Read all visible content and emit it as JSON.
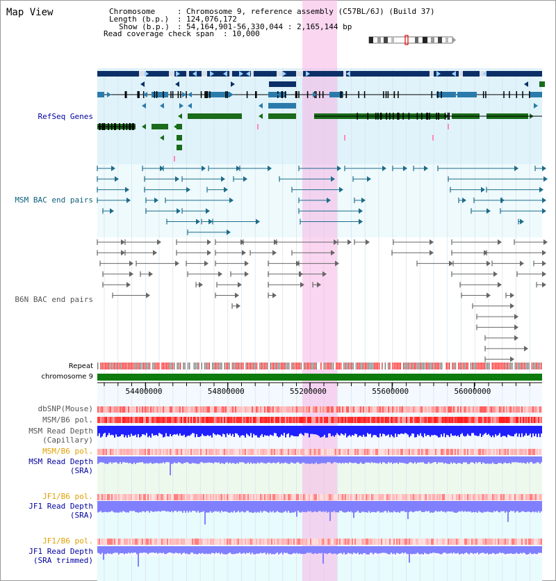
{
  "title": "Map View",
  "info": {
    "chromosome_key": "Chromosome",
    "chromosome_val": "Chromosome 9, reference assembly (C57BL/6J) (Build 37)",
    "length_key": "Length (b.p.)",
    "length_val": "124,076,172",
    "show_key": "Show (b.p.)",
    "show_val": "54,164,901-56,330,044 : 2,165,144 bp",
    "span_key": "Read coverage check span",
    "span_val": "10,000"
  },
  "tracks": {
    "refseq": "RefSeq Genes",
    "msm_bac": "MSM BAC end pairs",
    "b6n_bac": "B6N BAC end pairs",
    "repeat": "Repeat",
    "chrom": "chromosome 9",
    "dbsnp": "dbSNP(Mouse)",
    "msm_b6_pol": "MSM/B6 pol.",
    "msm_depth_cap_1": "MSM Read Depth",
    "msm_depth_cap_2": "(Capillary)",
    "msm_b6_pol2": "MSM/B6 pol.",
    "msm_depth_sra_1": "MSM Read Depth",
    "msm_depth_sra_2": "(SRA)",
    "jf1_b6_pol": "JF1/B6 pol.",
    "jf1_depth_sra_1": "JF1 Read Depth",
    "jf1_depth_sra_2": "(SRA)",
    "jf1_b6_pol2": "JF1/B6 pol.",
    "jf1_depth_trim_1": "JF1 Read Depth",
    "jf1_depth_trim_2": "(SRA trimmed)"
  },
  "axis": {
    "ticks": [
      "54400000",
      "54800000",
      "55200000",
      "55600000",
      "56000000"
    ],
    "tick_values": [
      54400000,
      54800000,
      55200000,
      55600000,
      56000000
    ],
    "start": 54164901,
    "end": 56330044
  },
  "colors": {
    "gene_dark": "#0b2f66",
    "gene_mid": "#2a7bab",
    "gene_green": "#1a6b1a",
    "msm_track": "#1e6b8a",
    "b6n_track": "#666666",
    "highlight": "#f7c8ec",
    "label_blue": "#0000a0",
    "label_teal": "#0a5f7a",
    "label_orange": "#e0a000",
    "depth_blue": "#2020ff",
    "depth_light": "#8080ff",
    "pol_red": "#ff2020"
  }
}
